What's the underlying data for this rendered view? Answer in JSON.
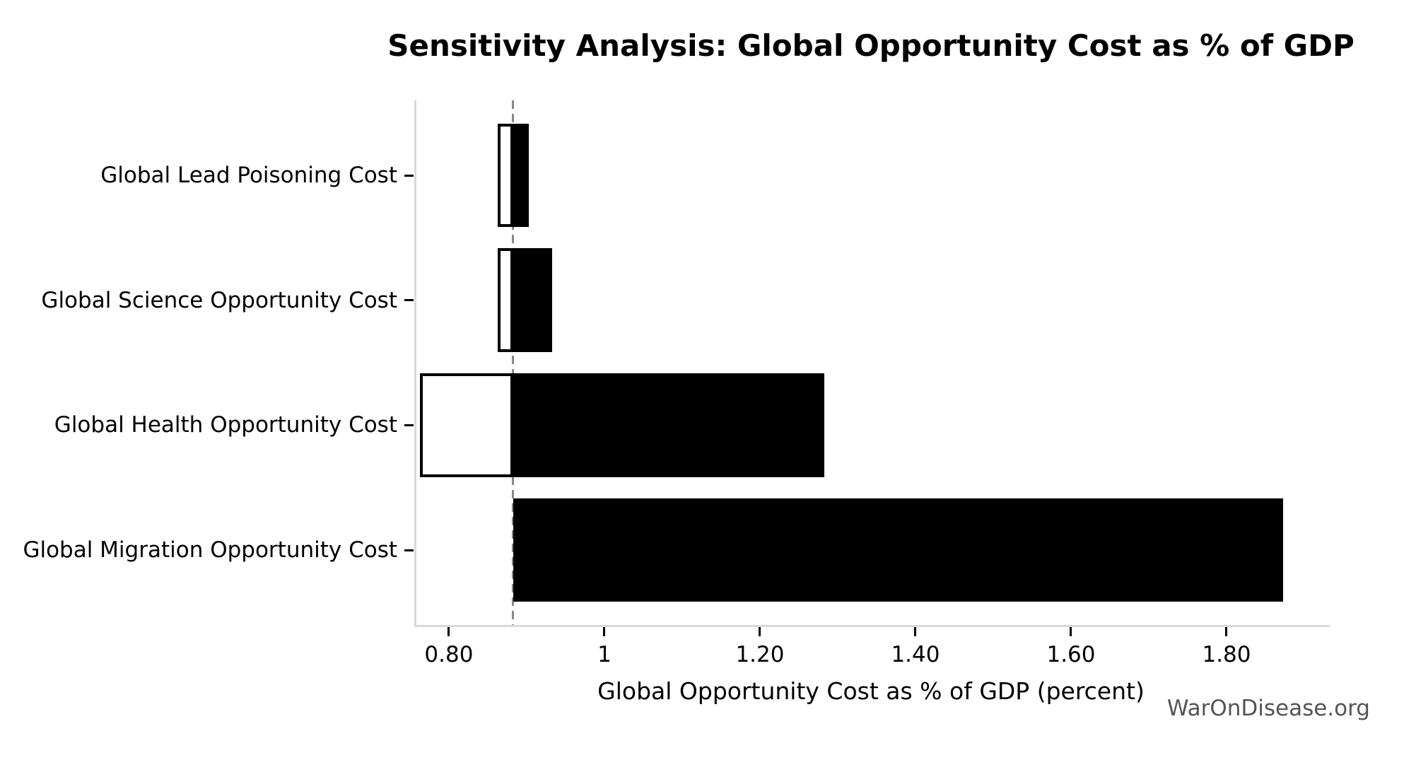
{
  "watermark": {
    "text": "WarOnDisease.org",
    "color": "#555555"
  },
  "chart_data": {
    "type": "bar",
    "orientation": "horizontal",
    "variant": "tornado",
    "title": "Sensitivity Analysis: Global Opportunity Cost as % of GDP",
    "xlabel": "Global Opportunity Cost as % of GDP (percent)",
    "ylabel": "",
    "baseline": 0.88,
    "xlim": [
      0.7555,
      1.93
    ],
    "grid": false,
    "legend_position": "none",
    "x_ticks": [
      {
        "value": 0.8,
        "label": "0.80"
      },
      {
        "value": 1.0,
        "label": "1"
      },
      {
        "value": 1.2,
        "label": "1.20"
      },
      {
        "value": 1.4,
        "label": "1.40"
      },
      {
        "value": 1.6,
        "label": "1.60"
      },
      {
        "value": 1.8,
        "label": "1.80"
      }
    ],
    "rows": [
      {
        "label": "Global Lead Poisoning Cost",
        "low": 0.86,
        "high": 0.9
      },
      {
        "label": "Global Science Opportunity Cost",
        "low": 0.86,
        "high": 0.93
      },
      {
        "label": "Global Health Opportunity Cost",
        "low": 0.76,
        "high": 1.28
      },
      {
        "label": "Global Migration Opportunity Cost",
        "low": 0.88,
        "high": 1.87
      }
    ],
    "colors": {
      "bar_high": "#000000",
      "bar_low_fill": "#ffffff",
      "bar_edge": "#000000",
      "baseline_line": "#888888",
      "spine": "#d9d9d9",
      "tick": "#000000",
      "watermark": "#555555"
    }
  }
}
